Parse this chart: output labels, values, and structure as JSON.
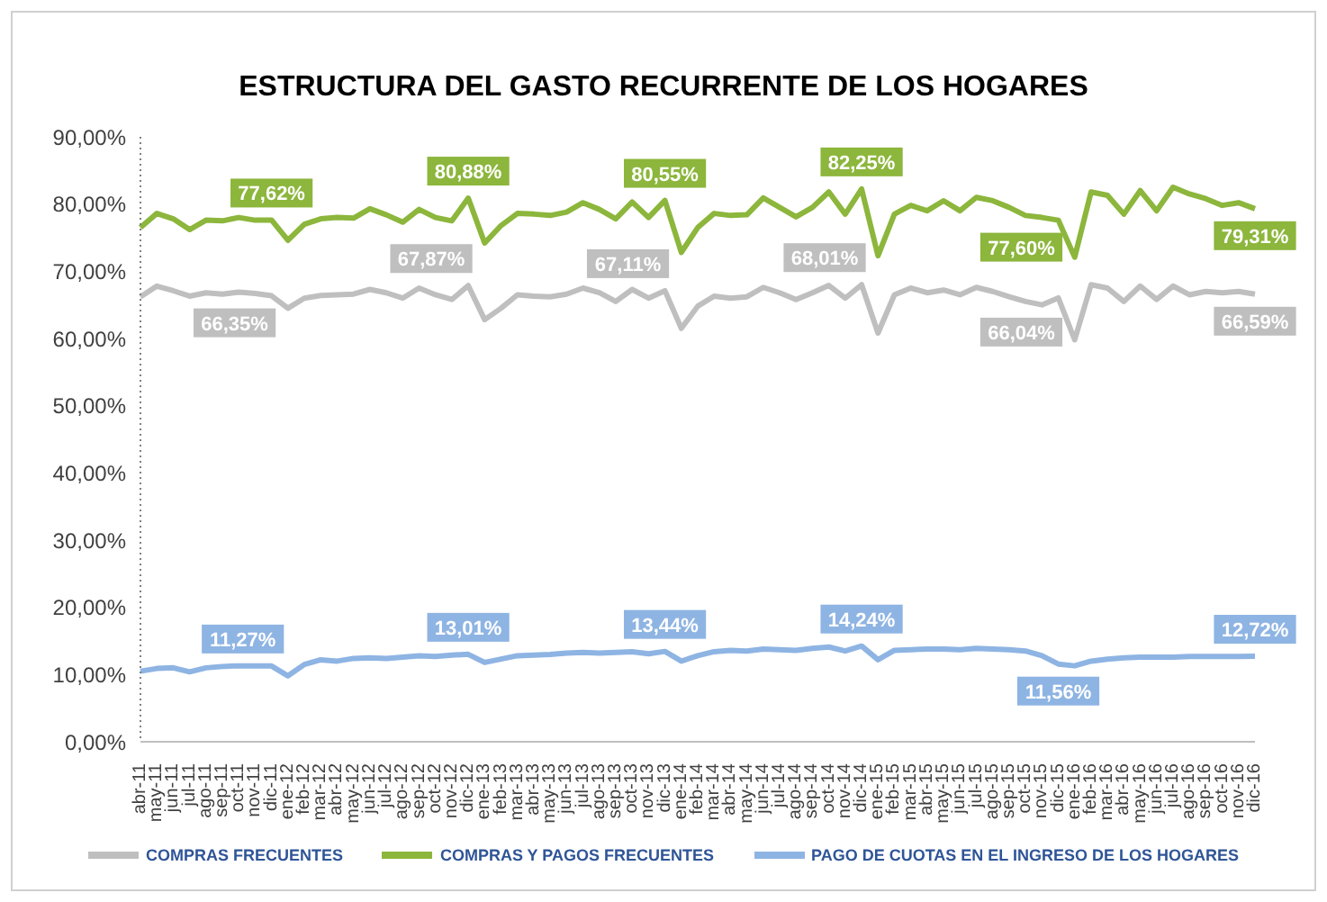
{
  "chart_data": {
    "type": "line",
    "title": "ESTRUCTURA DEL GASTO RECURRENTE DE LOS HOGARES",
    "categories": [
      "abr-11",
      "may-11",
      "jun-11",
      "jul-11",
      "ago-11",
      "sep-11",
      "oct-11",
      "nov-11",
      "dic-11",
      "ene-12",
      "feb-12",
      "mar-12",
      "abr-12",
      "may-12",
      "jun-12",
      "jul-12",
      "ago-12",
      "sep-12",
      "oct-12",
      "nov-12",
      "dic-12",
      "ene-13",
      "feb-13",
      "mar-13",
      "abr-13",
      "may-13",
      "jun-13",
      "jul-13",
      "ago-13",
      "sep-13",
      "oct-13",
      "nov-13",
      "dic-13",
      "ene-14",
      "feb-14",
      "mar-14",
      "abr-14",
      "may-14",
      "jun-14",
      "jul-14",
      "ago-14",
      "sep-14",
      "oct-14",
      "nov-14",
      "dic-14",
      "ene-15",
      "feb-15",
      "mar-15",
      "abr-15",
      "may-15",
      "jun-15",
      "jul-15",
      "ago-15",
      "sep-15",
      "oct-15",
      "nov-15",
      "dic-15",
      "ene-16",
      "feb-16",
      "mar-16",
      "abr-16",
      "may-16",
      "jun-16",
      "jul-16",
      "ago-16",
      "sep-16",
      "oct-16",
      "nov-16",
      "dic-16"
    ],
    "series": [
      {
        "name": "COMPRAS FRECUENTES",
        "color": "#bfbfbf",
        "values": [
          66.2,
          67.8,
          67.1,
          66.3,
          66.8,
          66.6,
          66.9,
          66.7,
          66.35,
          64.5,
          66.0,
          66.4,
          66.5,
          66.6,
          67.3,
          66.8,
          66.0,
          67.5,
          66.5,
          65.8,
          67.87,
          62.8,
          64.5,
          66.5,
          66.3,
          66.2,
          66.6,
          67.5,
          66.8,
          65.5,
          67.3,
          66.0,
          67.11,
          61.5,
          64.8,
          66.3,
          66.0,
          66.2,
          67.6,
          66.8,
          65.8,
          66.8,
          67.9,
          66.0,
          68.01,
          60.8,
          66.5,
          67.5,
          66.8,
          67.2,
          66.5,
          67.6,
          67.0,
          66.2,
          65.5,
          65.0,
          66.04,
          59.8,
          68.0,
          67.5,
          65.5,
          67.8,
          65.8,
          67.8,
          66.5,
          67.0,
          66.8,
          67.0,
          66.59
        ],
        "value_labels": [
          null,
          null,
          null,
          null,
          null,
          null,
          null,
          null,
          "66,35%",
          null,
          null,
          null,
          null,
          null,
          null,
          null,
          null,
          null,
          null,
          null,
          "67,87%",
          null,
          null,
          null,
          null,
          null,
          null,
          null,
          null,
          null,
          null,
          null,
          "67,11%",
          null,
          null,
          null,
          null,
          null,
          null,
          null,
          null,
          null,
          null,
          null,
          "68,01%",
          null,
          null,
          null,
          null,
          null,
          null,
          null,
          null,
          null,
          null,
          null,
          "66,04%",
          null,
          null,
          null,
          null,
          null,
          null,
          null,
          null,
          null,
          null,
          null,
          "66,59%"
        ]
      },
      {
        "name": "COMPRAS Y PAGOS FRECUENTES",
        "color": "#8cb63c",
        "values": [
          76.5,
          78.6,
          77.8,
          76.2,
          77.6,
          77.5,
          78.0,
          77.6,
          77.62,
          74.6,
          77.0,
          77.8,
          78.0,
          77.9,
          79.3,
          78.4,
          77.3,
          79.2,
          78.0,
          77.5,
          80.88,
          74.2,
          76.8,
          78.6,
          78.5,
          78.3,
          78.8,
          80.2,
          79.2,
          77.8,
          80.3,
          78.0,
          80.55,
          72.8,
          76.5,
          78.6,
          78.3,
          78.4,
          80.9,
          79.5,
          78.1,
          79.5,
          81.8,
          78.5,
          82.25,
          72.3,
          78.5,
          79.8,
          79.0,
          80.5,
          79.0,
          81.0,
          80.5,
          79.5,
          78.3,
          78.0,
          77.6,
          72.1,
          81.8,
          81.3,
          78.5,
          82.0,
          79.0,
          82.5,
          81.5,
          80.8,
          79.8,
          80.2,
          79.31
        ],
        "value_labels": [
          null,
          null,
          null,
          null,
          null,
          null,
          null,
          null,
          "77,62%",
          null,
          null,
          null,
          null,
          null,
          null,
          null,
          null,
          null,
          null,
          null,
          "80,88%",
          null,
          null,
          null,
          null,
          null,
          null,
          null,
          null,
          null,
          null,
          null,
          "80,55%",
          null,
          null,
          null,
          null,
          null,
          null,
          null,
          null,
          null,
          null,
          null,
          "82,25%",
          null,
          null,
          null,
          null,
          null,
          null,
          null,
          null,
          null,
          null,
          null,
          "77,60%",
          null,
          null,
          null,
          null,
          null,
          null,
          null,
          null,
          null,
          null,
          null,
          "79,31%"
        ]
      },
      {
        "name": "PAGO DE CUOTAS EN EL INGRESO DE LOS HOGARES",
        "color": "#8eb4e3",
        "values": [
          10.5,
          10.9,
          11.0,
          10.4,
          11.0,
          11.2,
          11.3,
          11.3,
          11.27,
          9.8,
          11.5,
          12.2,
          12.0,
          12.4,
          12.5,
          12.4,
          12.6,
          12.8,
          12.7,
          12.9,
          13.01,
          11.8,
          12.3,
          12.8,
          12.9,
          13.0,
          13.2,
          13.3,
          13.2,
          13.3,
          13.4,
          13.1,
          13.44,
          12.0,
          12.8,
          13.4,
          13.6,
          13.5,
          13.8,
          13.7,
          13.6,
          13.9,
          14.1,
          13.5,
          14.24,
          12.2,
          13.6,
          13.7,
          13.8,
          13.8,
          13.7,
          13.9,
          13.8,
          13.7,
          13.5,
          12.8,
          11.56,
          11.3,
          12.0,
          12.3,
          12.5,
          12.6,
          12.6,
          12.6,
          12.7,
          12.7,
          12.7,
          12.7,
          12.72
        ],
        "value_labels": [
          null,
          null,
          null,
          null,
          null,
          null,
          null,
          null,
          "11,27%",
          null,
          null,
          null,
          null,
          null,
          null,
          null,
          null,
          null,
          null,
          null,
          "13,01%",
          null,
          null,
          null,
          null,
          null,
          null,
          null,
          null,
          null,
          null,
          null,
          "13,44%",
          null,
          null,
          null,
          null,
          null,
          null,
          null,
          null,
          null,
          null,
          null,
          "14,24%",
          null,
          null,
          null,
          null,
          null,
          null,
          null,
          null,
          null,
          null,
          null,
          "11,56%",
          null,
          null,
          null,
          null,
          null,
          null,
          null,
          null,
          null,
          null,
          null,
          "12,72%"
        ]
      }
    ],
    "ylim": [
      0,
      90
    ],
    "yticks": [
      {
        "value": 0,
        "label": "0,00%"
      },
      {
        "value": 10,
        "label": "10,00%"
      },
      {
        "value": 20,
        "label": "20,00%"
      },
      {
        "value": 30,
        "label": "30,00%"
      },
      {
        "value": 40,
        "label": "40,00%"
      },
      {
        "value": 50,
        "label": "50,00%"
      },
      {
        "value": 60,
        "label": "60,00%"
      },
      {
        "value": 70,
        "label": "70,00%"
      },
      {
        "value": 80,
        "label": "80,00%"
      },
      {
        "value": 90,
        "label": "90,00%"
      }
    ],
    "legend": "bottom",
    "marker": "none",
    "line_style": "solid"
  }
}
